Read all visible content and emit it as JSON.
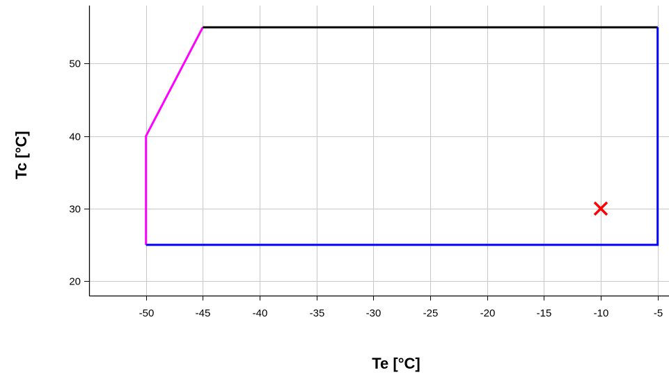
{
  "chart_data": {
    "type": "line",
    "xlabel": "Te [°C]",
    "ylabel": "Tc [°C]",
    "xlim": [
      -55,
      -4
    ],
    "ylim": [
      18,
      58
    ],
    "x_ticks": [
      -50,
      -45,
      -40,
      -35,
      -30,
      -25,
      -20,
      -15,
      -10,
      -5
    ],
    "y_ticks": [
      20,
      30,
      40,
      50
    ],
    "grid": true,
    "series": [
      {
        "color": "#ff00ff",
        "points": [
          [
            -50,
            25
          ],
          [
            -50,
            40
          ],
          [
            -45,
            55
          ]
        ]
      },
      {
        "color": "#000000",
        "points": [
          [
            -45,
            55
          ],
          [
            -5,
            55
          ]
        ]
      },
      {
        "color": "#0000ff",
        "points": [
          [
            -5,
            55
          ],
          [
            -5,
            25
          ],
          [
            -50,
            25
          ]
        ]
      }
    ],
    "markers": [
      {
        "x": -10,
        "y": 30,
        "shape": "x",
        "color": "#ff0000"
      }
    ],
    "colors": {
      "grid": "#c8c8c8",
      "axis": "#000000"
    }
  }
}
